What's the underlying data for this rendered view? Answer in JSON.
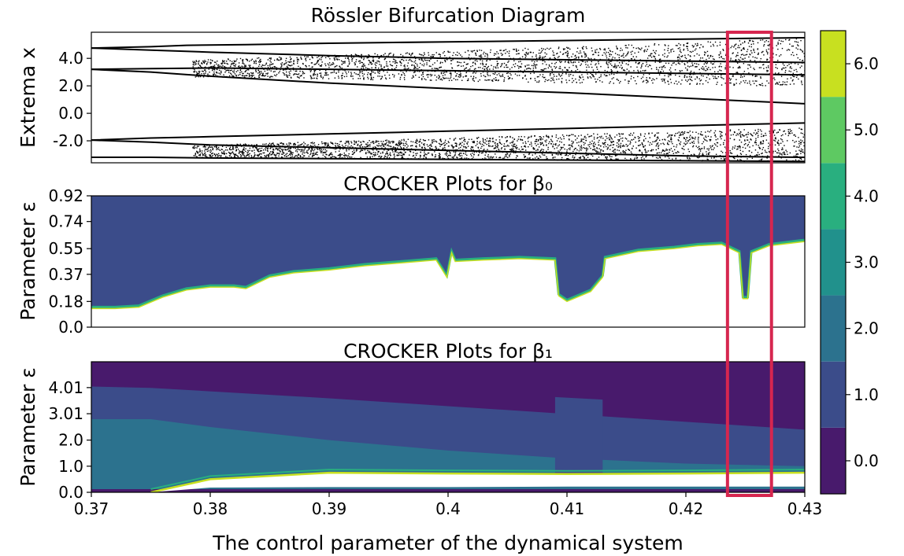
{
  "figure": {
    "xlabel": "The control parameter of the dynamical system",
    "xlim": [
      0.37,
      0.43
    ],
    "x_ticks": [
      "0.37",
      "0.38",
      "0.39",
      "0.4",
      "0.41",
      "0.42",
      "0.43"
    ],
    "highlight": {
      "x_range": [
        0.4235,
        0.4272
      ],
      "color": "#d6264f"
    }
  },
  "chart_data": [
    {
      "type": "scatter",
      "title": "Rössler Bifurcation Diagram",
      "ylabel": "Extrema x",
      "ylim": [
        -3.6,
        5.9
      ],
      "y_ticks": [
        "4.0",
        "2.0",
        "0.0",
        "-2.0"
      ],
      "point_color": "#000000",
      "branches": [
        {
          "x": [
            0.37,
            0.375,
            0.378,
            0.383,
            0.39,
            0.4,
            0.41,
            0.42,
            0.43
          ],
          "y": [
            4.75,
            4.85,
            4.95,
            5.0,
            5.1,
            5.2,
            5.3,
            5.4,
            5.5
          ]
        },
        {
          "x": [
            0.37,
            0.375,
            0.38,
            0.39,
            0.4,
            0.41,
            0.42,
            0.43
          ],
          "y": [
            4.75,
            4.6,
            4.45,
            4.2,
            4.0,
            3.9,
            3.8,
            3.7
          ]
        },
        {
          "x": [
            0.37,
            0.375,
            0.38,
            0.39,
            0.4,
            0.41,
            0.42,
            0.43
          ],
          "y": [
            3.2,
            3.25,
            3.3,
            3.2,
            3.1,
            3.0,
            2.9,
            2.8
          ]
        },
        {
          "x": [
            0.37,
            0.375,
            0.38,
            0.39,
            0.4,
            0.41,
            0.42,
            0.43
          ],
          "y": [
            3.2,
            3.0,
            2.7,
            2.2,
            1.8,
            1.5,
            1.1,
            0.7
          ]
        },
        {
          "x": [
            0.37,
            0.375,
            0.38,
            0.39,
            0.4,
            0.41,
            0.42,
            0.43
          ],
          "y": [
            -1.95,
            -1.8,
            -1.7,
            -1.5,
            -1.3,
            -1.1,
            -0.9,
            -0.7
          ]
        },
        {
          "x": [
            0.37,
            0.375,
            0.38,
            0.39,
            0.4,
            0.41,
            0.42,
            0.43
          ],
          "y": [
            -1.95,
            -2.1,
            -2.3,
            -2.5,
            -2.7,
            -2.9,
            -3.1,
            -3.2
          ]
        },
        {
          "x": [
            0.37,
            0.375,
            0.38,
            0.39,
            0.4,
            0.41,
            0.42,
            0.43
          ],
          "y": [
            -3.2,
            -3.2,
            -3.25,
            -3.3,
            -3.35,
            -3.4,
            -3.45,
            -3.5
          ]
        }
      ],
      "chaotic_bands": [
        {
          "x": [
            0.3785,
            0.43
          ],
          "y": [
            2.0,
            5.5
          ]
        },
        {
          "x": [
            0.3785,
            0.43
          ],
          "y": [
            -3.5,
            -1.0
          ]
        }
      ]
    },
    {
      "type": "heatmap",
      "title": "CROCKER Plots for β₀",
      "ylabel": "Parameter ε",
      "ylim": [
        0.0,
        0.92
      ],
      "y_ticks": [
        "0.92",
        "0.74",
        "0.55",
        "0.37",
        "0.18",
        "0.0"
      ],
      "fill_value": 1.0,
      "boundary_x": [
        0.37,
        0.372,
        0.374,
        0.376,
        0.378,
        0.38,
        0.382,
        0.383,
        0.385,
        0.387,
        0.39,
        0.393,
        0.396,
        0.399,
        0.3999,
        0.4003,
        0.4006,
        0.403,
        0.406,
        0.409,
        0.4093,
        0.41,
        0.412,
        0.413,
        0.4132,
        0.416,
        0.419,
        0.421,
        0.423,
        0.4245,
        0.4248,
        0.4252,
        0.4255,
        0.427,
        0.43
      ],
      "boundary_y": [
        0.13,
        0.13,
        0.14,
        0.21,
        0.26,
        0.28,
        0.28,
        0.27,
        0.35,
        0.38,
        0.4,
        0.43,
        0.45,
        0.47,
        0.35,
        0.52,
        0.46,
        0.47,
        0.48,
        0.47,
        0.22,
        0.18,
        0.25,
        0.35,
        0.48,
        0.53,
        0.55,
        0.57,
        0.58,
        0.52,
        0.2,
        0.2,
        0.52,
        0.57,
        0.6
      ]
    },
    {
      "type": "heatmap",
      "title": "CROCKER Plots for β₁",
      "ylabel": "Parameter ε",
      "ylim": [
        0.0,
        5.0
      ],
      "y_ticks": [
        "4.01",
        "3.01",
        "2.0",
        "1.0",
        "0.0"
      ],
      "bands": [
        {
          "value": 0.0,
          "x": [
            0.37,
            0.43
          ],
          "y_top": [
            5.0,
            5.0
          ],
          "y_bottom": [
            0.0,
            0.0
          ]
        },
        {
          "value": 1.0,
          "x": [
            0.37,
            0.375,
            0.39,
            0.4,
            0.41,
            0.42,
            0.43
          ],
          "y_top": [
            4.05,
            4.0,
            3.6,
            3.3,
            3.0,
            2.7,
            2.4
          ],
          "y_bottom": [
            0.0,
            0.0,
            0.0,
            0.0,
            0.0,
            0.0,
            0.0
          ]
        },
        {
          "value": 2.0,
          "x": [
            0.37,
            0.375,
            0.38,
            0.39,
            0.4,
            0.41,
            0.42,
            0.43
          ],
          "y_top": [
            2.8,
            2.8,
            2.5,
            2.0,
            1.6,
            1.3,
            1.1,
            1.0
          ],
          "y_bottom": [
            0.0,
            0.0,
            0.0,
            0.0,
            0.0,
            0.0,
            0.0,
            0.0
          ]
        },
        {
          "value": 1.0,
          "x": [
            0.409,
            0.413
          ],
          "y_top": [
            3.65,
            3.55
          ],
          "y_bottom": [
            0.3,
            0.3
          ]
        },
        {
          "value": 0.0,
          "x": [
            0.37,
            0.43
          ],
          "y_top": [
            0.12,
            0.12
          ],
          "y_bottom": [
            0.0,
            0.0
          ]
        }
      ],
      "white_region": {
        "x": [
          0.375,
          0.38,
          0.39,
          0.4,
          0.41,
          0.42,
          0.43
        ],
        "y_top": [
          0.0,
          0.5,
          0.75,
          0.72,
          0.7,
          0.72,
          0.75
        ],
        "y_bottom": [
          0.0,
          0.18,
          0.2,
          0.2,
          0.22,
          0.22,
          0.22
        ]
      }
    }
  ],
  "colorbar": {
    "ylim": [
      -0.5,
      6.5
    ],
    "ticks": [
      "6.0",
      "5.0",
      "4.0",
      "3.0",
      "2.0",
      "1.0",
      "0.0"
    ],
    "levels": [
      {
        "value": 0.0,
        "color": "#481a6c"
      },
      {
        "value": 1.0,
        "color": "#3b4c8a"
      },
      {
        "value": 2.0,
        "color": "#2c728e"
      },
      {
        "value": 3.0,
        "color": "#21918c"
      },
      {
        "value": 4.0,
        "color": "#29af7f"
      },
      {
        "value": 5.0,
        "color": "#5ec962"
      },
      {
        "value": 6.0,
        "color": "#c8e020"
      }
    ]
  }
}
